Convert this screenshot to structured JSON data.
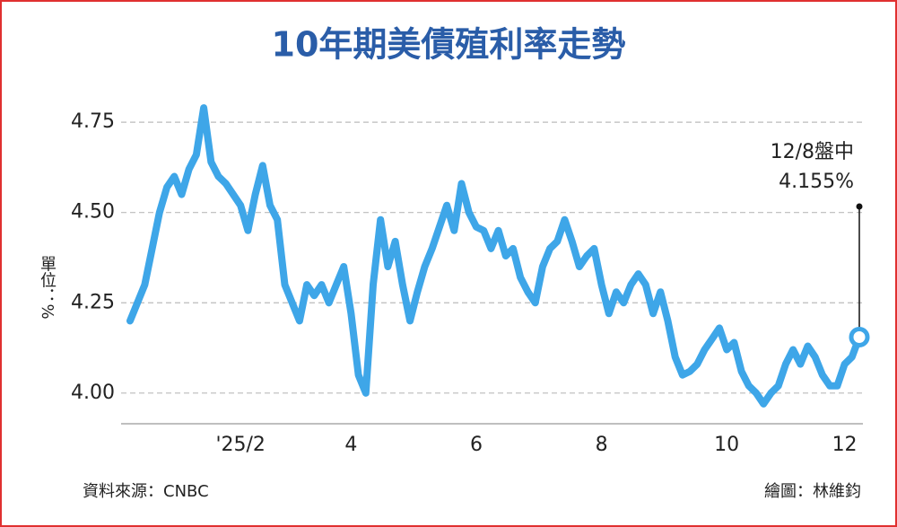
{
  "chart_data": {
    "type": "line",
    "title": "10年期美債殖利率走勢",
    "y_label": "單位：%",
    "source": "資料來源：CNBC",
    "credit": "繪圖：林維鈞",
    "categories": [
      null,
      null,
      null,
      null,
      null,
      null,
      null,
      null,
      null,
      null,
      null,
      null,
      null,
      null,
      null,
      "'25/2",
      null,
      null,
      null,
      null,
      null,
      null,
      null,
      null,
      null,
      null,
      null,
      null,
      null,
      null,
      "4",
      null,
      null,
      null,
      null,
      null,
      null,
      null,
      null,
      null,
      null,
      null,
      null,
      null,
      null,
      null,
      null,
      "6",
      null,
      null,
      null,
      null,
      null,
      null,
      null,
      null,
      null,
      null,
      null,
      null,
      null,
      null,
      null,
      null,
      "8",
      null,
      null,
      null,
      null,
      null,
      null,
      null,
      null,
      null,
      null,
      null,
      null,
      null,
      null,
      null,
      null,
      "10",
      null,
      null,
      null,
      null,
      null,
      null,
      null,
      null,
      null,
      null,
      null,
      null,
      null,
      null,
      null,
      "12",
      null,
      null
    ],
    "values": [
      4.2,
      4.25,
      4.3,
      4.4,
      4.5,
      4.57,
      4.6,
      4.55,
      4.62,
      4.66,
      4.79,
      4.64,
      4.6,
      4.58,
      4.55,
      4.52,
      4.45,
      4.55,
      4.63,
      4.52,
      4.48,
      4.3,
      4.25,
      4.2,
      4.3,
      4.27,
      4.3,
      4.25,
      4.3,
      4.35,
      4.22,
      4.05,
      4.0,
      4.3,
      4.48,
      4.35,
      4.42,
      4.3,
      4.2,
      4.28,
      4.35,
      4.4,
      4.46,
      4.52,
      4.45,
      4.58,
      4.5,
      4.46,
      4.45,
      4.4,
      4.45,
      4.38,
      4.4,
      4.32,
      4.28,
      4.25,
      4.35,
      4.4,
      4.42,
      4.48,
      4.42,
      4.35,
      4.38,
      4.4,
      4.3,
      4.22,
      4.28,
      4.25,
      4.3,
      4.33,
      4.3,
      4.22,
      4.28,
      4.2,
      4.1,
      4.05,
      4.06,
      4.08,
      4.12,
      4.15,
      4.18,
      4.12,
      4.14,
      4.06,
      4.02,
      4.0,
      3.97,
      4.0,
      4.02,
      4.08,
      4.12,
      4.08,
      4.13,
      4.1,
      4.05,
      4.02,
      4.02,
      4.08,
      4.1,
      4.155
    ],
    "color": "#3ea6e8",
    "annotation": {
      "text": "12/8盤中",
      "value_label": "4.155%"
    },
    "ylim": [
      3.915,
      4.815
    ],
    "yticks": [
      {
        "value": 4,
        "label": "4.00"
      },
      4.25,
      {
        "value": 4.5,
        "label": "4.50"
      },
      4.75
    ],
    "grid": true
  }
}
